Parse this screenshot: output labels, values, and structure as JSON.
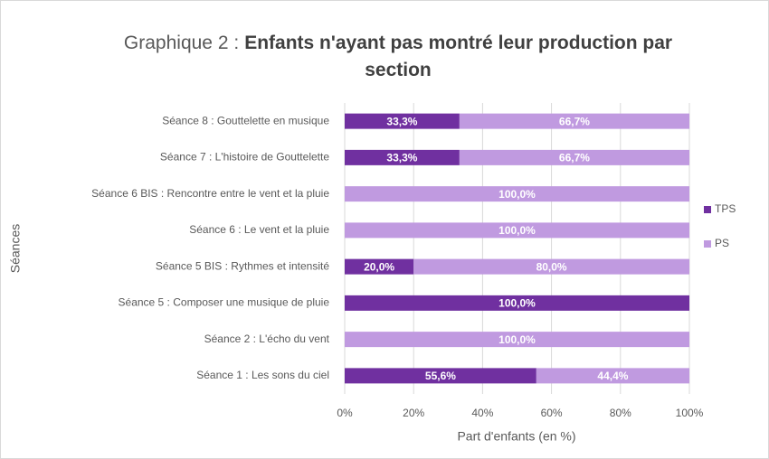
{
  "chart_data": {
    "type": "stacked_barh",
    "title": "Graphique 2 :",
    "title_emphasis": "Enfants n'ayant pas montré leur production par section",
    "categories": [
      "Séance 8 : Gouttelette en musique",
      "Séance 7 : L'histoire de Gouttelette",
      "Séance 6 BIS : Rencontre entre le vent et la pluie",
      "Séance 6 : Le vent et la pluie",
      "Séance 5 BIS : Rythmes et intensité",
      "Séance 5 : Composer une musique de pluie",
      "Séance 2 :  L'écho du vent",
      "Séance 1 : Les sons du ciel"
    ],
    "series": [
      {
        "name": "TPS",
        "color": "#7030a0",
        "values": [
          33.3,
          33.3,
          0,
          0,
          20,
          100,
          0,
          55.6
        ],
        "value_labels": [
          "33,3%",
          "33,3%",
          null,
          null,
          "20,0%",
          "100,0%",
          null,
          "55,6%"
        ]
      },
      {
        "name": "PS",
        "color": "#c09ae0",
        "values": [
          66.7,
          66.7,
          100,
          100,
          80,
          0,
          100,
          44.4
        ],
        "value_labels": [
          "66,7%",
          "66,7%",
          "100,0%",
          "100,0%",
          "80,0%",
          null,
          "100,0%",
          "44,4%"
        ]
      }
    ],
    "xlim": [
      0,
      100
    ],
    "xticks": [
      {
        "value": 0,
        "label": "0%"
      },
      {
        "value": 20,
        "label": "20%"
      },
      {
        "value": 40,
        "label": "40%"
      },
      {
        "value": 60,
        "label": "60%"
      },
      {
        "value": 80,
        "label": "80%"
      },
      {
        "value": 100,
        "label": "100%"
      }
    ],
    "xlabel": "Part d'enfants (en %)",
    "ylabel": "Séances",
    "grid": true,
    "legend": "right"
  }
}
